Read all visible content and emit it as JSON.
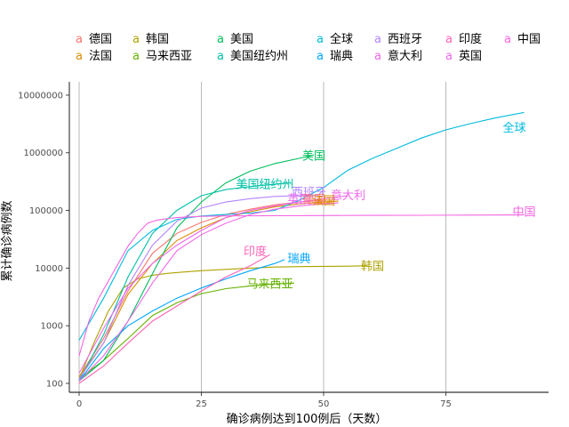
{
  "chart_data": {
    "type": "line",
    "title": "",
    "xlabel": "确诊病例达到100例后（天数）",
    "ylabel": "累计确诊病例数",
    "xlim": [
      -2,
      96
    ],
    "ylim": [
      70,
      17000000
    ],
    "y_scale": "log",
    "x_ticks": [
      0,
      25,
      50,
      75
    ],
    "y_ticks": [
      100,
      1000,
      10000,
      100000,
      1000000,
      10000000
    ],
    "y_tick_labels": [
      "100",
      "1000",
      "10000",
      "100000",
      "1000000",
      "10000000"
    ],
    "grid": "vertical major lines",
    "legend_position": "top",
    "legend_glyph": "a",
    "series": [
      {
        "name": "德国",
        "color": "#F8766D",
        "x": [
          0,
          5,
          10,
          15,
          20,
          25,
          30,
          35,
          40,
          45,
          50,
          52
        ],
        "y": [
          130,
          600,
          4000,
          18000,
          40000,
          62000,
          85000,
          105000,
          125000,
          140000,
          150000,
          152000
        ]
      },
      {
        "name": "法国",
        "color": "#DB8E00",
        "x": [
          0,
          5,
          10,
          15,
          20,
          25,
          30,
          35,
          40,
          45,
          50,
          53
        ],
        "y": [
          130,
          500,
          3500,
          12000,
          30000,
          50000,
          75000,
          95000,
          115000,
          130000,
          140000,
          145000
        ]
      },
      {
        "name": "韩国",
        "color": "#AEA200",
        "x": [
          0,
          3,
          6,
          9,
          12,
          15,
          18,
          21,
          25,
          30,
          35,
          40,
          45,
          50,
          55,
          59
        ],
        "y": [
          120,
          500,
          1800,
          4500,
          6500,
          7500,
          8100,
          8500,
          9000,
          9500,
          10000,
          10400,
          10600,
          10700,
          10800,
          11000
        ]
      },
      {
        "name": "马来西亚",
        "color": "#64B200",
        "x": [
          0,
          5,
          10,
          15,
          20,
          25,
          30,
          35,
          40,
          44
        ],
        "y": [
          120,
          250,
          600,
          1500,
          2500,
          3600,
          4400,
          4900,
          5300,
          5500
        ]
      },
      {
        "name": "美国",
        "color": "#00BD5C",
        "x": [
          0,
          5,
          10,
          15,
          20,
          25,
          30,
          35,
          40,
          45,
          48
        ],
        "y": [
          110,
          250,
          1200,
          8000,
          50000,
          140000,
          300000,
          480000,
          650000,
          800000,
          920000
        ]
      },
      {
        "name": "美国纽约州",
        "color": "#00C1A7",
        "x": [
          0,
          5,
          10,
          15,
          20,
          25,
          30,
          35,
          40,
          43
        ],
        "y": [
          110,
          700,
          7000,
          40000,
          100000,
          180000,
          230000,
          260000,
          285000,
          300000
        ]
      },
      {
        "name": "全球",
        "color": "#00BADE",
        "x": [
          0,
          5,
          10,
          15,
          20,
          25,
          30,
          35,
          40,
          45,
          50,
          55,
          60,
          65,
          70,
          75,
          80,
          85,
          91
        ],
        "y": [
          560,
          3000,
          20000,
          45000,
          70000,
          80000,
          85000,
          90000,
          100000,
          150000,
          250000,
          500000,
          800000,
          1200000,
          1800000,
          2500000,
          3200000,
          4000000,
          5000000
        ]
      },
      {
        "name": "瑞典",
        "color": "#00A6FF",
        "x": [
          0,
          5,
          10,
          15,
          20,
          25,
          30,
          35,
          40,
          42
        ],
        "y": [
          110,
          400,
          1000,
          1800,
          3000,
          4500,
          6500,
          9000,
          12000,
          14000
        ]
      },
      {
        "name": "西班牙",
        "color": "#B385FF",
        "x": [
          0,
          5,
          10,
          15,
          20,
          25,
          30,
          35,
          40,
          45,
          48
        ],
        "y": [
          120,
          500,
          5000,
          25000,
          65000,
          110000,
          140000,
          160000,
          175000,
          180000,
          185000
        ]
      },
      {
        "name": "意大利",
        "color": "#EF67EB",
        "x": [
          0,
          5,
          10,
          15,
          20,
          25,
          30,
          35,
          40,
          45,
          50,
          55
        ],
        "y": [
          150,
          900,
          4500,
          12000,
          25000,
          45000,
          75000,
          100000,
          120000,
          140000,
          160000,
          180000
        ]
      },
      {
        "name": "印度",
        "color": "#FF63B6",
        "x": [
          0,
          5,
          10,
          15,
          20,
          25,
          30,
          35,
          39
        ],
        "y": [
          100,
          200,
          500,
          1200,
          2200,
          4000,
          7000,
          11000,
          17000
        ]
      },
      {
        "name": "英国",
        "color": "#EF67EB",
        "x": [
          0,
          5,
          10,
          15,
          20,
          25,
          30,
          35,
          40,
          45,
          50,
          53
        ],
        "y": [
          110,
          300,
          1200,
          5500,
          20000,
          38000,
          60000,
          85000,
          105000,
          120000,
          130000,
          135000
        ]
      },
      {
        "name": "中国",
        "color": "#F564E3",
        "x": [
          0,
          2,
          4,
          6,
          8,
          10,
          12,
          14,
          16,
          18,
          20,
          25,
          30,
          40,
          50,
          60,
          70,
          80,
          91
        ],
        "y": [
          300,
          1200,
          3000,
          6000,
          12000,
          24000,
          40000,
          60000,
          68000,
          72000,
          75000,
          79000,
          80500,
          81000,
          81500,
          82000,
          82500,
          83000,
          83500
        ]
      }
    ],
    "labels": [
      {
        "text": "美国",
        "x": 48,
        "y": 900000
      },
      {
        "text": "全球",
        "x": 89,
        "y": 2800000
      },
      {
        "text": "美国纽约州",
        "x": 38,
        "y": 290000
      },
      {
        "text": "西班牙",
        "x": 47,
        "y": 210000
      },
      {
        "text": "意大利",
        "x": 55,
        "y": 185000
      },
      {
        "text": "英国",
        "x": 45,
        "y": 160000
      },
      {
        "text": "德国",
        "x": 48,
        "y": 158000
      },
      {
        "text": "法国",
        "x": 50,
        "y": 150000
      },
      {
        "text": "中国",
        "x": 91,
        "y": 96000
      },
      {
        "text": "印度",
        "x": 36,
        "y": 20000
      },
      {
        "text": "瑞典",
        "x": 45,
        "y": 15000
      },
      {
        "text": "韩国",
        "x": 60,
        "y": 11000
      },
      {
        "text": "马来西亚",
        "x": 39,
        "y": 5400
      }
    ]
  }
}
